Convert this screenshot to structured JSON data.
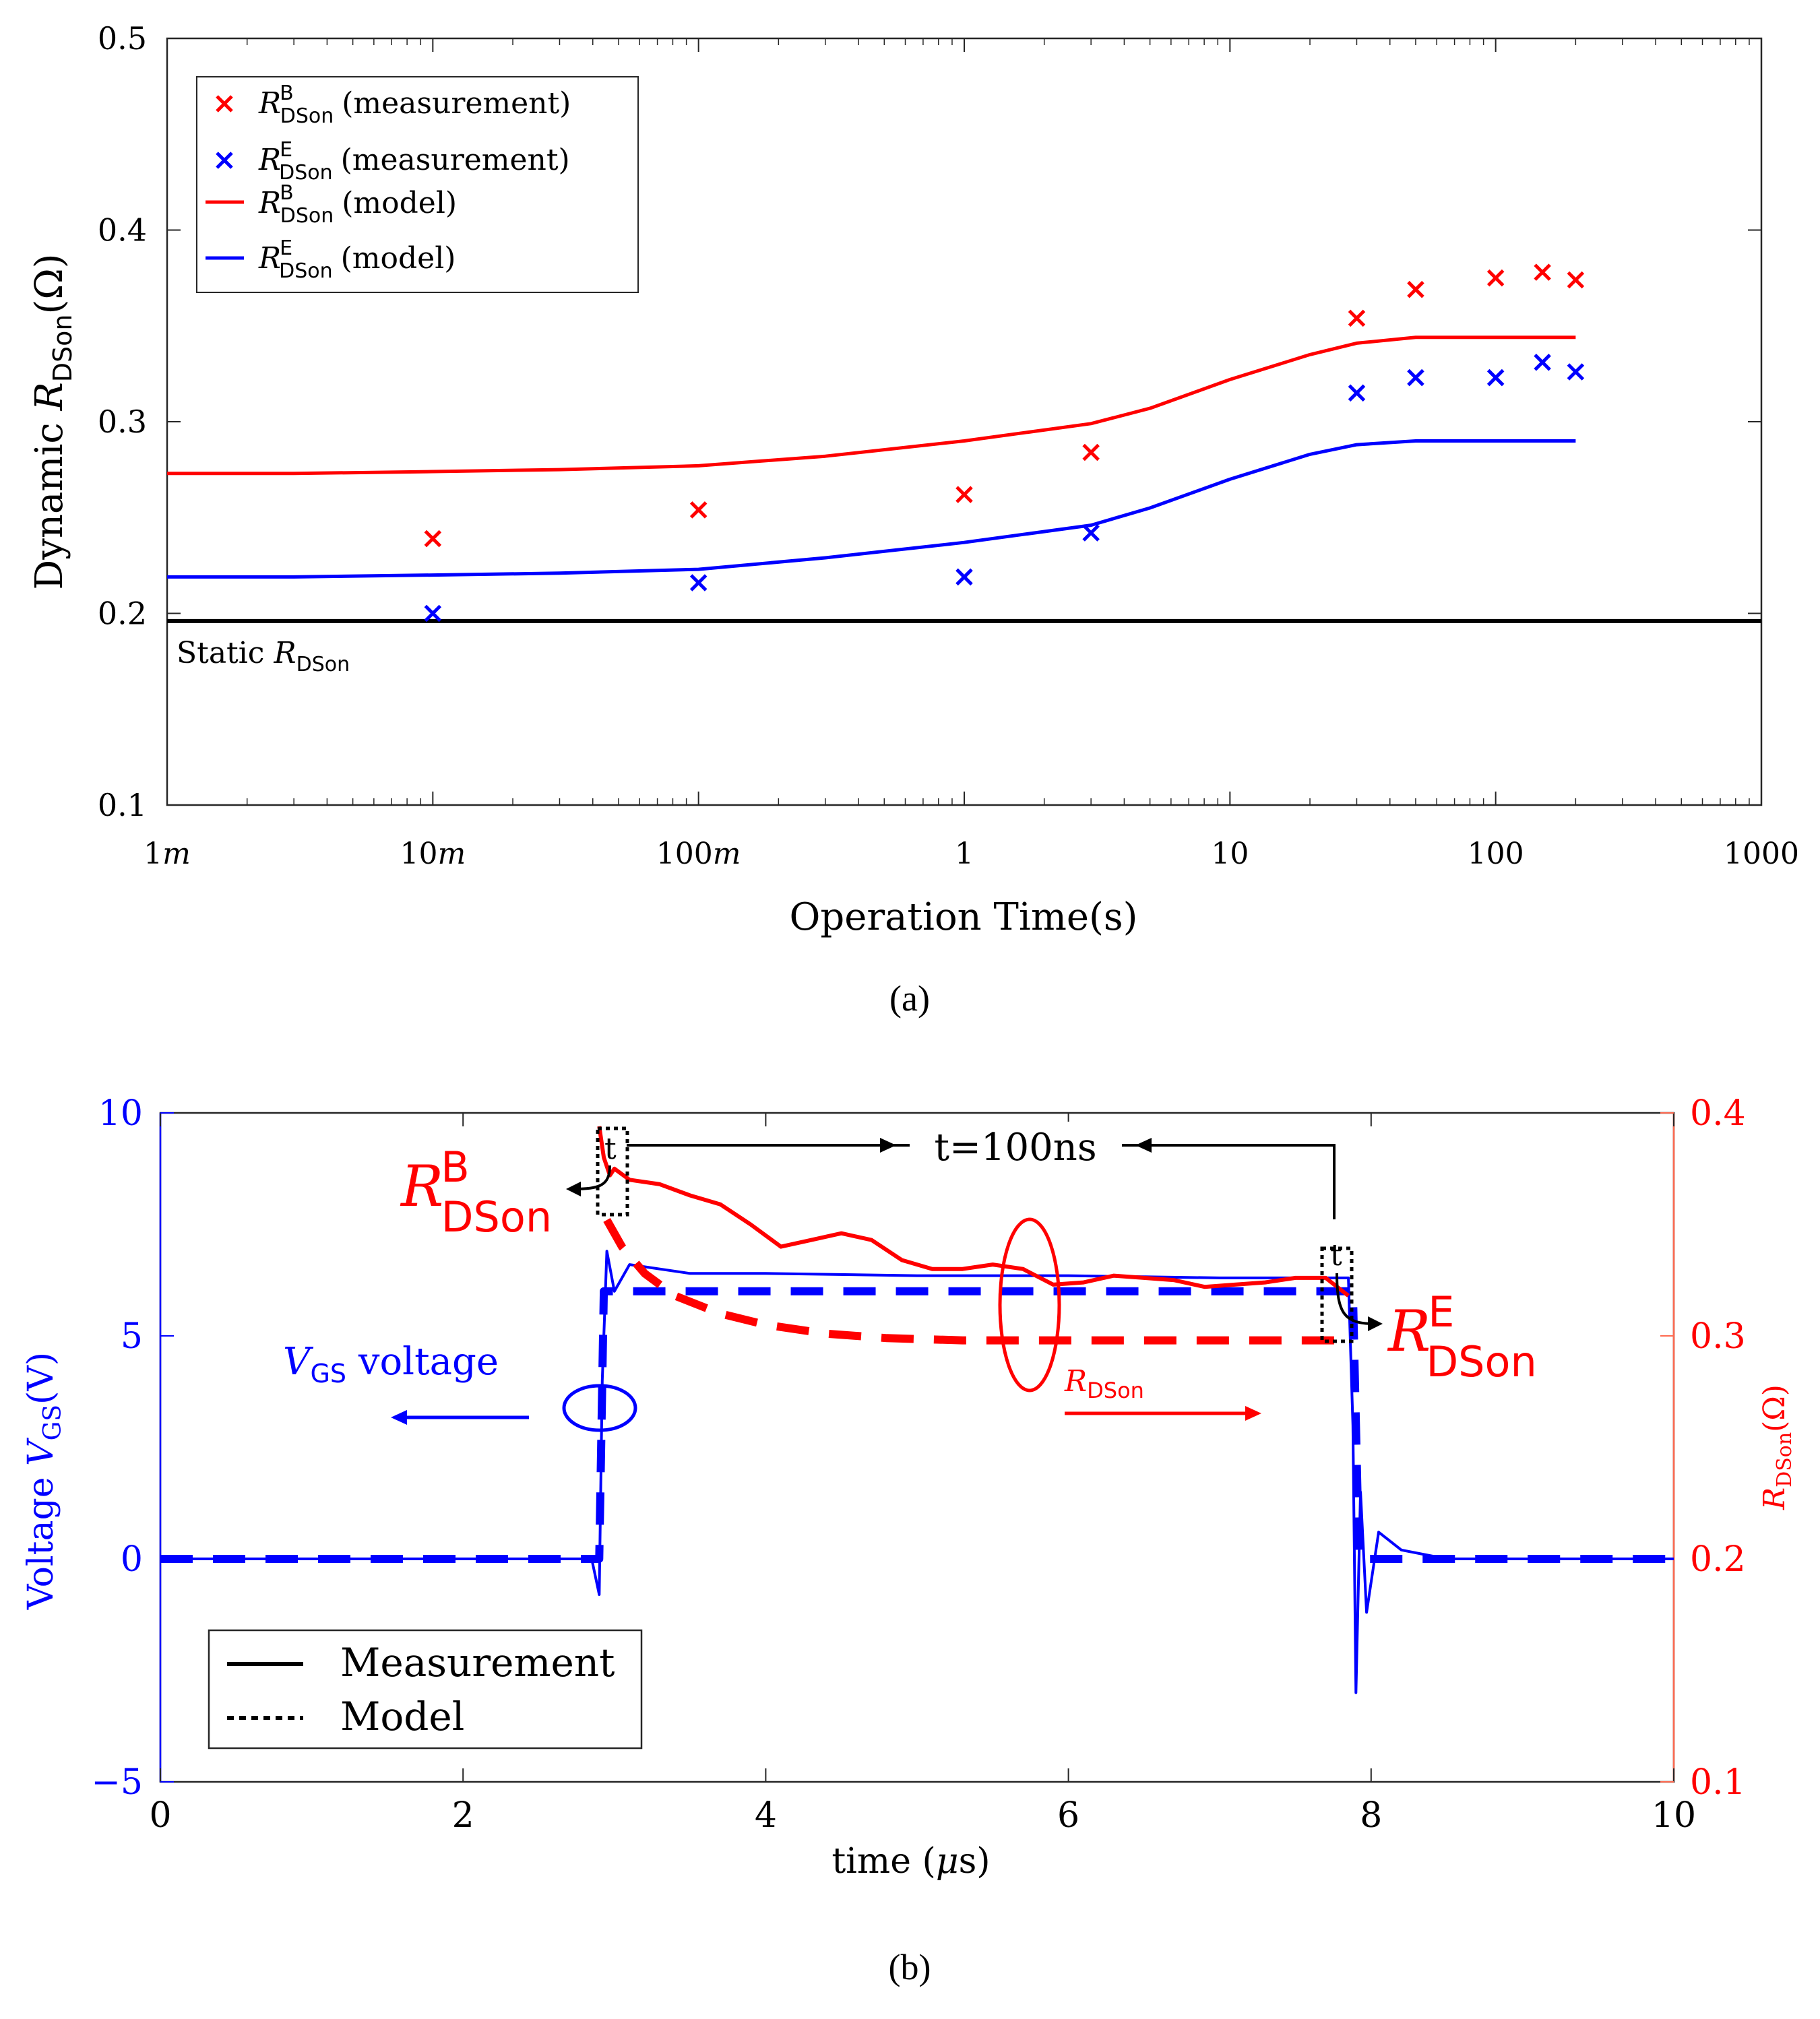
{
  "colors": {
    "red": "#ff0000",
    "blue": "#0000ff",
    "black": "#000000",
    "axis": "#262626",
    "grid": "#dcdcdc"
  },
  "chart_data": [
    {
      "type": "scatter",
      "caption": "(a)",
      "xlabel": "Operation Time(s)",
      "ylabel_prefix": "Dynamic ",
      "ylabel_var": "R",
      "ylabel_sub": "DSon",
      "ylabel_unit": "(Ω)",
      "xscale": "log",
      "xlim": [
        0.001,
        1000
      ],
      "ylim": [
        0.1,
        0.5
      ],
      "xticks": [
        {
          "v": 0.001,
          "num": "1",
          "suf": "m"
        },
        {
          "v": 0.01,
          "num": "10",
          "suf": "m"
        },
        {
          "v": 0.1,
          "num": "100",
          "suf": "m"
        },
        {
          "v": 1,
          "num": "1",
          "suf": ""
        },
        {
          "v": 10,
          "num": "10",
          "suf": ""
        },
        {
          "v": 100,
          "num": "100",
          "suf": ""
        },
        {
          "v": 1000,
          "num": "1000",
          "suf": ""
        }
      ],
      "yticks": [
        0.1,
        0.2,
        0.3,
        0.4,
        0.5
      ],
      "legend_position": "top-left",
      "series": [
        {
          "var": "R",
          "sup": "B",
          "sub": "DSon",
          "note": "(measurement)",
          "kind": "marker",
          "color": "#ff0000",
          "x": [
            0.01,
            0.1,
            1,
            3,
            30,
            50,
            100,
            150,
            200
          ],
          "y": [
            0.239,
            0.254,
            0.262,
            0.284,
            0.354,
            0.369,
            0.375,
            0.378,
            0.374
          ]
        },
        {
          "var": "R",
          "sup": "E",
          "sub": "DSon",
          "note": "(measurement)",
          "kind": "marker",
          "color": "#0000ff",
          "x": [
            0.01,
            0.1,
            1,
            3,
            30,
            50,
            100,
            150,
            200
          ],
          "y": [
            0.2,
            0.216,
            0.219,
            0.242,
            0.315,
            0.323,
            0.323,
            0.331,
            0.326
          ]
        },
        {
          "var": "R",
          "sup": "B",
          "sub": "DSon",
          "note": "(model)",
          "kind": "line",
          "color": "#ff0000",
          "x": [
            0.001,
            0.003,
            0.01,
            0.03,
            0.1,
            0.3,
            1,
            3,
            5,
            10,
            20,
            30,
            50,
            100,
            200
          ],
          "y": [
            0.273,
            0.273,
            0.274,
            0.275,
            0.277,
            0.282,
            0.29,
            0.299,
            0.307,
            0.322,
            0.335,
            0.341,
            0.344,
            0.344,
            0.344
          ]
        },
        {
          "var": "R",
          "sup": "E",
          "sub": "DSon",
          "note": "(model)",
          "kind": "line",
          "color": "#0000ff",
          "x": [
            0.001,
            0.003,
            0.01,
            0.03,
            0.1,
            0.3,
            1,
            3,
            5,
            10,
            20,
            30,
            50,
            100,
            200
          ],
          "y": [
            0.219,
            0.219,
            0.22,
            0.221,
            0.223,
            0.229,
            0.237,
            0.246,
            0.255,
            0.27,
            0.283,
            0.288,
            0.29,
            0.29,
            0.29
          ]
        }
      ],
      "static_line": {
        "y": 0.196,
        "label_text": "Static ",
        "label_var": "R",
        "label_sub": "DSon",
        "color": "#000000"
      }
    },
    {
      "type": "line",
      "caption": "(b)",
      "xlabel_text": "time (",
      "xlabel_mu": "μ",
      "xlabel_unit": "s)",
      "ylabel_left_text": "Voltage ",
      "ylabel_left_var": "V",
      "ylabel_left_sub": "GS",
      "ylabel_left_unit": "(V)",
      "ylabel_right_var": "R",
      "ylabel_right_sub": "DSon",
      "ylabel_right_unit": "(Ω)",
      "xlim": [
        0,
        10
      ],
      "ylim_left": [
        -5,
        10
      ],
      "ylim_right": [
        0.1,
        0.4
      ],
      "xticks": [
        0,
        2,
        4,
        6,
        8,
        10
      ],
      "yticks_left": [
        "−5",
        "0",
        "5",
        "10"
      ],
      "yticks_left_values": [
        -5,
        0,
        5,
        10
      ],
      "yticks_right": [
        "0.1",
        "0.2",
        "0.3",
        "0.4"
      ],
      "yticks_right_values": [
        0.1,
        0.2,
        0.3,
        0.4
      ],
      "legend_position": "bottom-left",
      "legend": [
        {
          "label": "Measurement",
          "style": "solid"
        },
        {
          "label": "Model",
          "style": "dotted"
        }
      ],
      "series": [
        {
          "name": "VGS measurement",
          "axis": "left",
          "color": "#0000ff",
          "style": "solid",
          "x": [
            0,
            2.85,
            2.9,
            2.92,
            2.95,
            3.0,
            3.1,
            3.5,
            4.0,
            5.0,
            6.0,
            7.0,
            7.85,
            7.88,
            7.9,
            7.93,
            7.97,
            8.05,
            8.2,
            8.5,
            9.0,
            10.0
          ],
          "y": [
            0.0,
            0.0,
            -0.8,
            4.0,
            6.9,
            6.0,
            6.6,
            6.4,
            6.4,
            6.35,
            6.35,
            6.3,
            6.3,
            3.0,
            -3.0,
            1.5,
            -1.2,
            0.6,
            0.2,
            0.0,
            0.0,
            0.0
          ]
        },
        {
          "name": "VGS model",
          "axis": "left",
          "color": "#0000ff",
          "style": "dashed",
          "x": [
            0,
            2.9,
            2.93,
            3.1,
            7.88,
            7.92,
            10.0
          ],
          "y": [
            0.0,
            0.0,
            6.0,
            6.0,
            6.0,
            0.0,
            0.0
          ]
        },
        {
          "name": "RDSon measurement",
          "axis": "right",
          "color": "#ff0000",
          "style": "solid",
          "x": [
            2.9,
            2.93,
            2.97,
            3.0,
            3.1,
            3.3,
            3.5,
            3.7,
            3.9,
            4.1,
            4.3,
            4.5,
            4.7,
            4.9,
            5.1,
            5.3,
            5.5,
            5.7,
            5.9,
            6.1,
            6.3,
            6.5,
            6.7,
            6.9,
            7.1,
            7.3,
            7.5,
            7.7,
            7.85
          ],
          "y": [
            0.394,
            0.38,
            0.372,
            0.375,
            0.37,
            0.368,
            0.363,
            0.359,
            0.35,
            0.34,
            0.343,
            0.346,
            0.343,
            0.334,
            0.33,
            0.33,
            0.332,
            0.33,
            0.323,
            0.324,
            0.327,
            0.326,
            0.325,
            0.322,
            0.323,
            0.324,
            0.326,
            0.326,
            0.318
          ]
        },
        {
          "name": "RDSon model",
          "axis": "right",
          "color": "#ff0000",
          "style": "dashed",
          "x": [
            2.95,
            3.05,
            3.2,
            3.4,
            3.7,
            4.0,
            4.4,
            4.8,
            5.3,
            6.0,
            7.0,
            7.85
          ],
          "y": [
            0.352,
            0.34,
            0.328,
            0.318,
            0.31,
            0.305,
            0.301,
            0.299,
            0.298,
            0.298,
            0.298,
            0.298
          ]
        }
      ],
      "annotations": {
        "t_main": "t=100ns",
        "t_small": "t",
        "rb_var": "R",
        "rb_sup": "B",
        "rb_sub": "DSon",
        "re_var": "R",
        "re_sup": "E",
        "re_sub": "DSon",
        "vgs_var": "V",
        "vgs_sub": "GS",
        "vgs_text": " voltage",
        "rds_var": "R",
        "rds_sub": "DSon"
      }
    }
  ]
}
